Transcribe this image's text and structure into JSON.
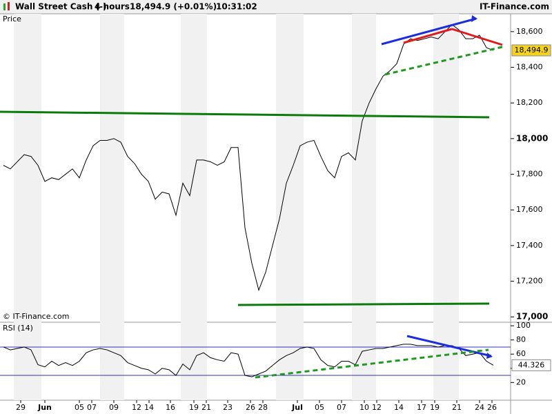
{
  "header": {
    "instrument": "Wall Street Cash (-)",
    "timeframe": "4 hours",
    "quote": "18,494.9 (+0.01%)",
    "time": "10:31:02",
    "site": "IT-Finance.com"
  },
  "chart_data": [
    {
      "type": "line",
      "panel_label": "Price",
      "watermark": "© IT-Finance.com",
      "series": [
        {
          "name": "Price",
          "color": "#000000",
          "values": [
            17850,
            17830,
            17870,
            17910,
            17900,
            17850,
            17760,
            17780,
            17770,
            17800,
            17830,
            17780,
            17880,
            17960,
            17990,
            17990,
            18000,
            17980,
            17900,
            17860,
            17800,
            17760,
            17660,
            17700,
            17690,
            17570,
            17750,
            17680,
            17880,
            17880,
            17870,
            17850,
            17870,
            17950,
            17950,
            17500,
            17300,
            17150,
            17250,
            17400,
            17550,
            17750,
            17850,
            17960,
            17980,
            17990,
            17900,
            17820,
            17780,
            17900,
            17920,
            17880,
            18100,
            18200,
            18280,
            18350,
            18380,
            18420,
            18530,
            18560,
            18550,
            18560,
            18570,
            18560,
            18600,
            18640,
            18610,
            18560,
            18560,
            18580,
            18510,
            18494.9
          ],
          "last_label": "18,494.9"
        }
      ],
      "xlim": [
        -0.5,
        73.5
      ],
      "ylim": [
        16970,
        18700
      ],
      "yticks": [
        {
          "value": 17000,
          "label": "17,000"
        },
        {
          "value": 17200,
          "label": "17,200"
        },
        {
          "value": 17400,
          "label": "17,400"
        },
        {
          "value": 17600,
          "label": "17,600"
        },
        {
          "value": 17800,
          "label": "17,800"
        },
        {
          "value": 18000,
          "label": "18,000"
        },
        {
          "value": 18200,
          "label": "18,200"
        },
        {
          "value": 18400,
          "label": "18,400"
        },
        {
          "value": 18600,
          "label": "18,600"
        }
      ]
    },
    {
      "type": "line",
      "panel_label": "RSI (14)",
      "series": [
        {
          "name": "RSI (14)",
          "color": "#000000",
          "values": [
            70,
            66,
            68,
            70,
            66,
            45,
            42,
            50,
            44,
            48,
            44,
            50,
            62,
            66,
            68,
            66,
            62,
            58,
            48,
            44,
            40,
            38,
            32,
            40,
            38,
            30,
            46,
            38,
            58,
            62,
            55,
            52,
            50,
            62,
            60,
            30,
            28,
            32,
            36,
            44,
            52,
            58,
            62,
            68,
            70,
            68,
            52,
            44,
            42,
            50,
            50,
            45,
            64,
            66,
            68,
            68,
            70,
            72,
            74,
            74,
            72,
            72,
            72,
            70,
            72,
            72,
            68,
            58,
            60,
            62,
            50,
            44.326
          ],
          "last_label": "44.326"
        }
      ],
      "reference_lines": [
        70,
        30
      ],
      "xlim": [
        -0.5,
        73.5
      ],
      "ylim": [
        -5,
        105
      ],
      "yticks": [
        20,
        40,
        60,
        80,
        100
      ],
      "xticks": [
        {
          "value": 2.5,
          "label": "29"
        },
        {
          "value": 6,
          "label": "Jun"
        },
        {
          "value": 11,
          "label": "05"
        },
        {
          "value": 12.8,
          "label": "07"
        },
        {
          "value": 16,
          "label": "09"
        },
        {
          "value": 19.3,
          "label": "12"
        },
        {
          "value": 21.1,
          "label": "14"
        },
        {
          "value": 24.2,
          "label": "16"
        },
        {
          "value": 27.6,
          "label": "19"
        },
        {
          "value": 29.4,
          "label": "21"
        },
        {
          "value": 32.5,
          "label": "23"
        },
        {
          "value": 35.8,
          "label": "26"
        },
        {
          "value": 37.6,
          "label": "28"
        },
        {
          "value": 42.6,
          "label": "Jul"
        },
        {
          "value": 45.8,
          "label": "05"
        },
        {
          "value": 49,
          "label": "07"
        },
        {
          "value": 52.3,
          "label": "10"
        },
        {
          "value": 54.1,
          "label": "12"
        },
        {
          "value": 57.3,
          "label": "14"
        },
        {
          "value": 60.6,
          "label": "17"
        },
        {
          "value": 62.5,
          "label": "19"
        },
        {
          "value": 65.7,
          "label": "21"
        },
        {
          "value": 69,
          "label": "24"
        },
        {
          "value": 70.8,
          "label": "26"
        }
      ]
    }
  ]
}
